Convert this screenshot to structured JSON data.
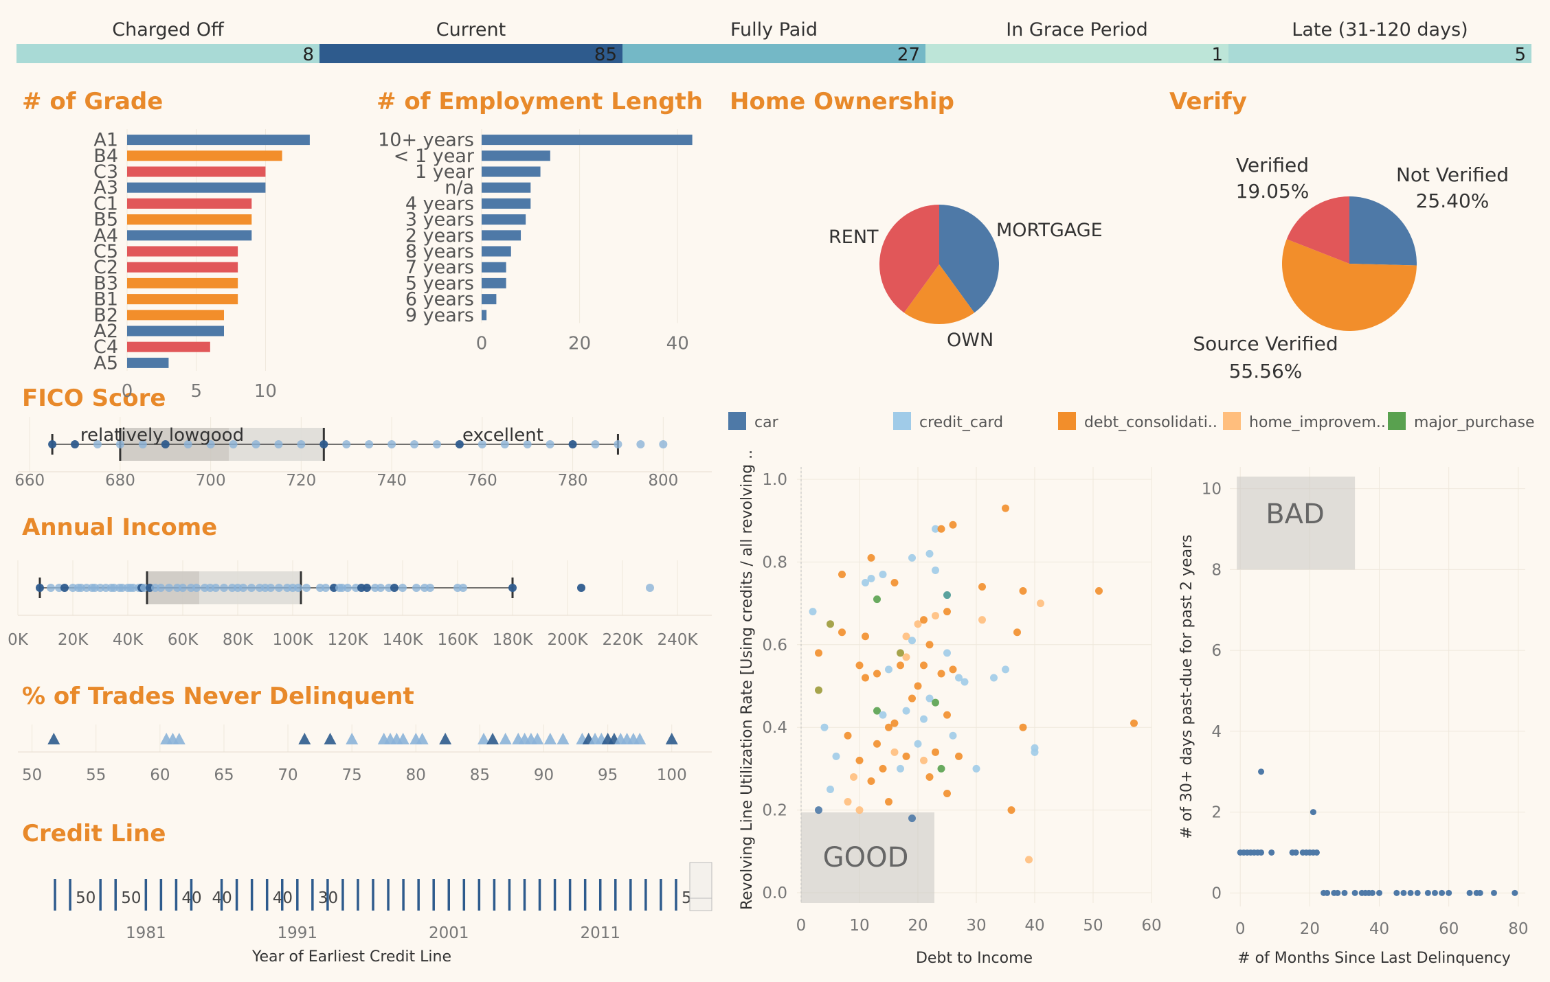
{
  "status_bar": {
    "segments": [
      {
        "label": "Charged Off",
        "value": 8,
        "color": "#a9dad6"
      },
      {
        "label": "Current",
        "value": 85,
        "color": "#2e5b8d"
      },
      {
        "label": "Fully Paid",
        "value": 27,
        "color": "#74b8c6"
      },
      {
        "label": "In Grace Period",
        "value": 1,
        "color": "#bde5d8"
      },
      {
        "label": "Late (31-120 days)",
        "value": 5,
        "color": "#a9dad6"
      }
    ]
  },
  "titles": {
    "grade": "# of Grade",
    "employment": "# of Employment Length",
    "home": "Home Ownership",
    "verify": "Verify",
    "fico": "FICO Score",
    "income": "Annual Income",
    "trades": "% of Trades Never Delinquent",
    "credit": "Credit Line"
  },
  "colors": {
    "blue": "#4e79a7",
    "orange": "#f28e2b",
    "red": "#e15759",
    "lightblue": "#a0cbe8",
    "peach": "#ffbe7d",
    "green": "#59a14f",
    "teal": "#499894",
    "olive": "#9c9a3a",
    "title": "#e8892a"
  },
  "chart_data": [
    {
      "type": "bar",
      "id": "grade",
      "orientation": "horizontal",
      "categories": [
        "A1",
        "B4",
        "C3",
        "A3",
        "C1",
        "B5",
        "A4",
        "C5",
        "C2",
        "B3",
        "B1",
        "B2",
        "A2",
        "C4",
        "A5"
      ],
      "values": [
        13.2,
        11.2,
        10,
        10,
        9,
        9,
        9,
        8,
        8,
        8,
        8,
        7,
        7,
        6,
        3
      ],
      "bar_colors": [
        "blue",
        "orange",
        "red",
        "blue",
        "red",
        "orange",
        "blue",
        "red",
        "red",
        "orange",
        "orange",
        "orange",
        "blue",
        "red",
        "blue"
      ],
      "xlim": [
        0,
        14
      ],
      "xticks": [
        0,
        5,
        10
      ]
    },
    {
      "type": "bar",
      "id": "employment",
      "orientation": "horizontal",
      "categories": [
        "10+ years",
        "< 1 year",
        "1 year",
        "n/a",
        "4 years",
        "3 years",
        "2 years",
        "8 years",
        "7 years",
        "5 years",
        "6 years",
        "9 years"
      ],
      "values": [
        43,
        14,
        12,
        10,
        10,
        9,
        8,
        6,
        5,
        5,
        3,
        1
      ],
      "xlim": [
        0,
        46
      ],
      "xticks": [
        0,
        20,
        40
      ]
    },
    {
      "type": "pie",
      "id": "home",
      "slices": [
        {
          "label": "MORTGAGE",
          "value": 40,
          "color": "blue"
        },
        {
          "label": "OWN",
          "value": 20,
          "color": "orange"
        },
        {
          "label": "RENT",
          "value": 40,
          "color": "red"
        }
      ]
    },
    {
      "type": "pie",
      "id": "verify",
      "slices": [
        {
          "label": "Not Verified",
          "pct": "25.40%",
          "value": 25.4,
          "color": "blue"
        },
        {
          "label": "Source Verified",
          "pct": "55.56%",
          "value": 55.56,
          "color": "orange"
        },
        {
          "label": "Verified",
          "pct": "19.05%",
          "value": 19.05,
          "color": "red"
        }
      ]
    },
    {
      "type": "box",
      "id": "fico",
      "xlim": [
        658,
        808
      ],
      "xticks": [
        660,
        680,
        700,
        720,
        740,
        760,
        780,
        800
      ],
      "whisker_low": 665,
      "q1": 680,
      "median": 704,
      "q3": 725,
      "whisker_high": 790,
      "bands": [
        {
          "label": "relatively lowgood",
          "from": 680,
          "to": 725
        },
        {
          "label": "excellent",
          "from": 725,
          "to": 790
        }
      ],
      "points": [
        665,
        670,
        675,
        680,
        685,
        690,
        695,
        700,
        705,
        710,
        715,
        720,
        725,
        730,
        735,
        740,
        745,
        750,
        755,
        760,
        765,
        770,
        775,
        780,
        785,
        790,
        795,
        800
      ],
      "dark_points": [
        665,
        670,
        690,
        725,
        755,
        780
      ]
    },
    {
      "type": "box",
      "id": "income",
      "xlim": [
        0,
        245
      ],
      "xticks_labels": [
        "0K",
        "20K",
        "40K",
        "60K",
        "80K",
        "100K",
        "120K",
        "140K",
        "160K",
        "180K",
        "200K",
        "220K",
        "240K"
      ],
      "xticks": [
        0,
        20,
        40,
        60,
        80,
        100,
        120,
        140,
        160,
        180,
        200,
        220,
        240
      ],
      "whisker_low": 8,
      "q1": 47,
      "median": 66,
      "q3": 103,
      "whisker_high": 180,
      "points": [
        8,
        12,
        15,
        17,
        20,
        22,
        23,
        25,
        27,
        28,
        30,
        32,
        34,
        35,
        37,
        38,
        40,
        41,
        42,
        44,
        45,
        46,
        48,
        50,
        52,
        55,
        58,
        60,
        63,
        65,
        68,
        70,
        72,
        75,
        78,
        80,
        82,
        85,
        88,
        90,
        92,
        95,
        98,
        100,
        102,
        105,
        110,
        112,
        115,
        117,
        118,
        120,
        123,
        125,
        127,
        130,
        132,
        135,
        137,
        140,
        145,
        148,
        150,
        160,
        162,
        180,
        205,
        230
      ],
      "dark_points": [
        8,
        17,
        45,
        48,
        115,
        125,
        127,
        137,
        180,
        205
      ]
    },
    {
      "type": "strip",
      "id": "trades",
      "xlim": [
        49,
        102
      ],
      "xticks": [
        50,
        55,
        60,
        65,
        70,
        75,
        80,
        85,
        90,
        95,
        100
      ],
      "points": [
        51.7,
        60.5,
        61,
        61.5,
        71.3,
        73.3,
        75,
        77.5,
        78,
        78.5,
        79,
        80,
        80.5,
        82.3,
        85.3,
        86,
        87,
        88,
        88.5,
        89,
        89.5,
        90.5,
        91.5,
        93,
        93.5,
        94,
        94.5,
        95,
        95.5,
        96,
        96.5,
        97,
        97.5,
        100
      ],
      "dark_points": [
        51.7,
        71.3,
        73.3,
        82.3,
        86,
        93.5,
        95,
        95.5,
        100
      ]
    },
    {
      "type": "timeline",
      "id": "credit",
      "xlabel": "Year of Earliest Credit Line",
      "xticks": [
        1981,
        1991,
        2001,
        2011
      ],
      "years": [
        1975,
        1976,
        1978,
        1979,
        1981,
        1982,
        1983,
        1984,
        1986,
        1987,
        1988,
        1989,
        1990,
        1991,
        1992,
        1993,
        1994,
        1995,
        1996,
        1997,
        1998,
        1999,
        2000,
        2001,
        2002,
        2003,
        2004,
        2005,
        2006,
        2007,
        2008,
        2009,
        2010,
        2011,
        2012,
        2013,
        2014,
        2015,
        2016
      ],
      "labels": [
        {
          "year": 1976,
          "text": "50"
        },
        {
          "year": 1979,
          "text": "50"
        },
        {
          "year": 1983,
          "text": "40"
        },
        {
          "year": 1985,
          "text": "40"
        },
        {
          "year": 1989,
          "text": "40"
        },
        {
          "year": 1992,
          "text": "30"
        },
        {
          "year": 2016,
          "text": "5"
        }
      ]
    },
    {
      "type": "scatter",
      "id": "dti_util",
      "xlabel": "Debt to Income",
      "ylabel": "Revolving Line Utilization Rate [Using credits / all revolving ..",
      "xlim": [
        0,
        60
      ],
      "ylim": [
        0,
        1.0
      ],
      "xticks": [
        0,
        10,
        20,
        30,
        40,
        50,
        60
      ],
      "yticks": [
        0.0,
        0.2,
        0.4,
        0.6,
        0.8,
        1.0
      ],
      "annotation": "GOOD",
      "legend": [
        {
          "label": "car",
          "color": "blue"
        },
        {
          "label": "credit_card",
          "color": "lightblue"
        },
        {
          "label": "debt_consolidati..",
          "color": "orange"
        },
        {
          "label": "home_improvem..",
          "color": "peach"
        },
        {
          "label": "major_purchase",
          "color": "green"
        }
      ],
      "points": [
        [
          2,
          0.68,
          "lightblue"
        ],
        [
          3,
          0.58,
          "orange"
        ],
        [
          3,
          0.49,
          "olive"
        ],
        [
          3,
          0.2,
          "blue"
        ],
        [
          4,
          0.4,
          "lightblue"
        ],
        [
          5,
          0.25,
          "lightblue"
        ],
        [
          5,
          0.65,
          "olive"
        ],
        [
          6,
          0.33,
          "lightblue"
        ],
        [
          7,
          0.63,
          "orange"
        ],
        [
          7,
          0.77,
          "orange"
        ],
        [
          8,
          0.38,
          "orange"
        ],
        [
          8,
          0.22,
          "peach"
        ],
        [
          9,
          0.28,
          "peach"
        ],
        [
          10,
          0.32,
          "orange"
        ],
        [
          10,
          0.55,
          "orange"
        ],
        [
          10,
          0.2,
          "peach"
        ],
        [
          11,
          0.75,
          "lightblue"
        ],
        [
          11,
          0.62,
          "orange"
        ],
        [
          11,
          0.52,
          "orange"
        ],
        [
          12,
          0.81,
          "orange"
        ],
        [
          12,
          0.76,
          "lightblue"
        ],
        [
          12,
          0.27,
          "orange"
        ],
        [
          13,
          0.71,
          "green"
        ],
        [
          13,
          0.53,
          "orange"
        ],
        [
          13,
          0.44,
          "green"
        ],
        [
          13,
          0.36,
          "orange"
        ],
        [
          14,
          0.77,
          "lightblue"
        ],
        [
          14,
          0.43,
          "lightblue"
        ],
        [
          14,
          0.3,
          "orange"
        ],
        [
          15,
          0.54,
          "lightblue"
        ],
        [
          15,
          0.4,
          "orange"
        ],
        [
          15,
          0.22,
          "orange"
        ],
        [
          16,
          0.75,
          "orange"
        ],
        [
          16,
          0.41,
          "orange"
        ],
        [
          16,
          0.34,
          "peach"
        ],
        [
          17,
          0.58,
          "olive"
        ],
        [
          17,
          0.55,
          "orange"
        ],
        [
          17,
          0.3,
          "lightblue"
        ],
        [
          18,
          0.62,
          "peach"
        ],
        [
          18,
          0.57,
          "peach"
        ],
        [
          18,
          0.44,
          "lightblue"
        ],
        [
          18,
          0.33,
          "orange"
        ],
        [
          19,
          0.81,
          "lightblue"
        ],
        [
          19,
          0.61,
          "lightblue"
        ],
        [
          19,
          0.47,
          "orange"
        ],
        [
          19,
          0.18,
          "blue"
        ],
        [
          20,
          0.65,
          "peach"
        ],
        [
          20,
          0.5,
          "orange"
        ],
        [
          20,
          0.36,
          "lightblue"
        ],
        [
          21,
          0.66,
          "orange"
        ],
        [
          21,
          0.55,
          "orange"
        ],
        [
          21,
          0.42,
          "lightblue"
        ],
        [
          21,
          0.32,
          "peach"
        ],
        [
          22,
          0.82,
          "lightblue"
        ],
        [
          22,
          0.6,
          "orange"
        ],
        [
          22,
          0.47,
          "lightblue"
        ],
        [
          22,
          0.28,
          "orange"
        ],
        [
          23,
          0.88,
          "lightblue"
        ],
        [
          23,
          0.78,
          "lightblue"
        ],
        [
          23,
          0.67,
          "peach"
        ],
        [
          23,
          0.46,
          "green"
        ],
        [
          23,
          0.34,
          "orange"
        ],
        [
          24,
          0.88,
          "orange"
        ],
        [
          24,
          0.53,
          "orange"
        ],
        [
          24,
          0.3,
          "green"
        ],
        [
          25,
          0.72,
          "teal"
        ],
        [
          25,
          0.68,
          "orange"
        ],
        [
          25,
          0.58,
          "lightblue"
        ],
        [
          25,
          0.43,
          "orange"
        ],
        [
          25,
          0.24,
          "orange"
        ],
        [
          26,
          0.89,
          "orange"
        ],
        [
          26,
          0.54,
          "orange"
        ],
        [
          26,
          0.38,
          "lightblue"
        ],
        [
          27,
          0.52,
          "lightblue"
        ],
        [
          27,
          0.33,
          "orange"
        ],
        [
          28,
          0.51,
          "lightblue"
        ],
        [
          30,
          0.3,
          "lightblue"
        ],
        [
          31,
          0.74,
          "orange"
        ],
        [
          31,
          0.66,
          "peach"
        ],
        [
          33,
          0.52,
          "lightblue"
        ],
        [
          35,
          0.54,
          "lightblue"
        ],
        [
          35,
          0.93,
          "orange"
        ],
        [
          36,
          0.2,
          "orange"
        ],
        [
          38,
          0.73,
          "orange"
        ],
        [
          37,
          0.63,
          "orange"
        ],
        [
          38,
          0.4,
          "orange"
        ],
        [
          39,
          0.08,
          "peach"
        ],
        [
          40,
          0.34,
          "lightblue"
        ],
        [
          40,
          0.35,
          "lightblue"
        ],
        [
          41,
          0.7,
          "peach"
        ],
        [
          51,
          0.73,
          "orange"
        ],
        [
          57,
          0.41,
          "orange"
        ]
      ]
    },
    {
      "type": "scatter",
      "id": "months_pastdue",
      "xlabel": "# of Months Since Last Delinquency",
      "ylabel": "# of 30+ days past-due for past 2 years",
      "xlim": [
        -3,
        82
      ],
      "ylim": [
        -0.3,
        10.3
      ],
      "xticks": [
        0,
        20,
        40,
        60,
        80
      ],
      "yticks": [
        0,
        2,
        4,
        6,
        8,
        10
      ],
      "annotation": "BAD",
      "points": [
        [
          0,
          1
        ],
        [
          1,
          1
        ],
        [
          2,
          1
        ],
        [
          3,
          1
        ],
        [
          4,
          1
        ],
        [
          5,
          1
        ],
        [
          6,
          1
        ],
        [
          6,
          3
        ],
        [
          9,
          1
        ],
        [
          15,
          1
        ],
        [
          16,
          1
        ],
        [
          18,
          1
        ],
        [
          19,
          1
        ],
        [
          20,
          1
        ],
        [
          21,
          1
        ],
        [
          22,
          1
        ],
        [
          21,
          2
        ],
        [
          24,
          0
        ],
        [
          25,
          0
        ],
        [
          27,
          0
        ],
        [
          28,
          0
        ],
        [
          30,
          0
        ],
        [
          33,
          0
        ],
        [
          35,
          0
        ],
        [
          36,
          0
        ],
        [
          37,
          0
        ],
        [
          38,
          0
        ],
        [
          40,
          0
        ],
        [
          45,
          0
        ],
        [
          47,
          0
        ],
        [
          49,
          0
        ],
        [
          51,
          0
        ],
        [
          54,
          0
        ],
        [
          56,
          0
        ],
        [
          58,
          0
        ],
        [
          60,
          0
        ],
        [
          66,
          0
        ],
        [
          68,
          0
        ],
        [
          69,
          0
        ],
        [
          73,
          0
        ],
        [
          79,
          0
        ]
      ]
    }
  ]
}
